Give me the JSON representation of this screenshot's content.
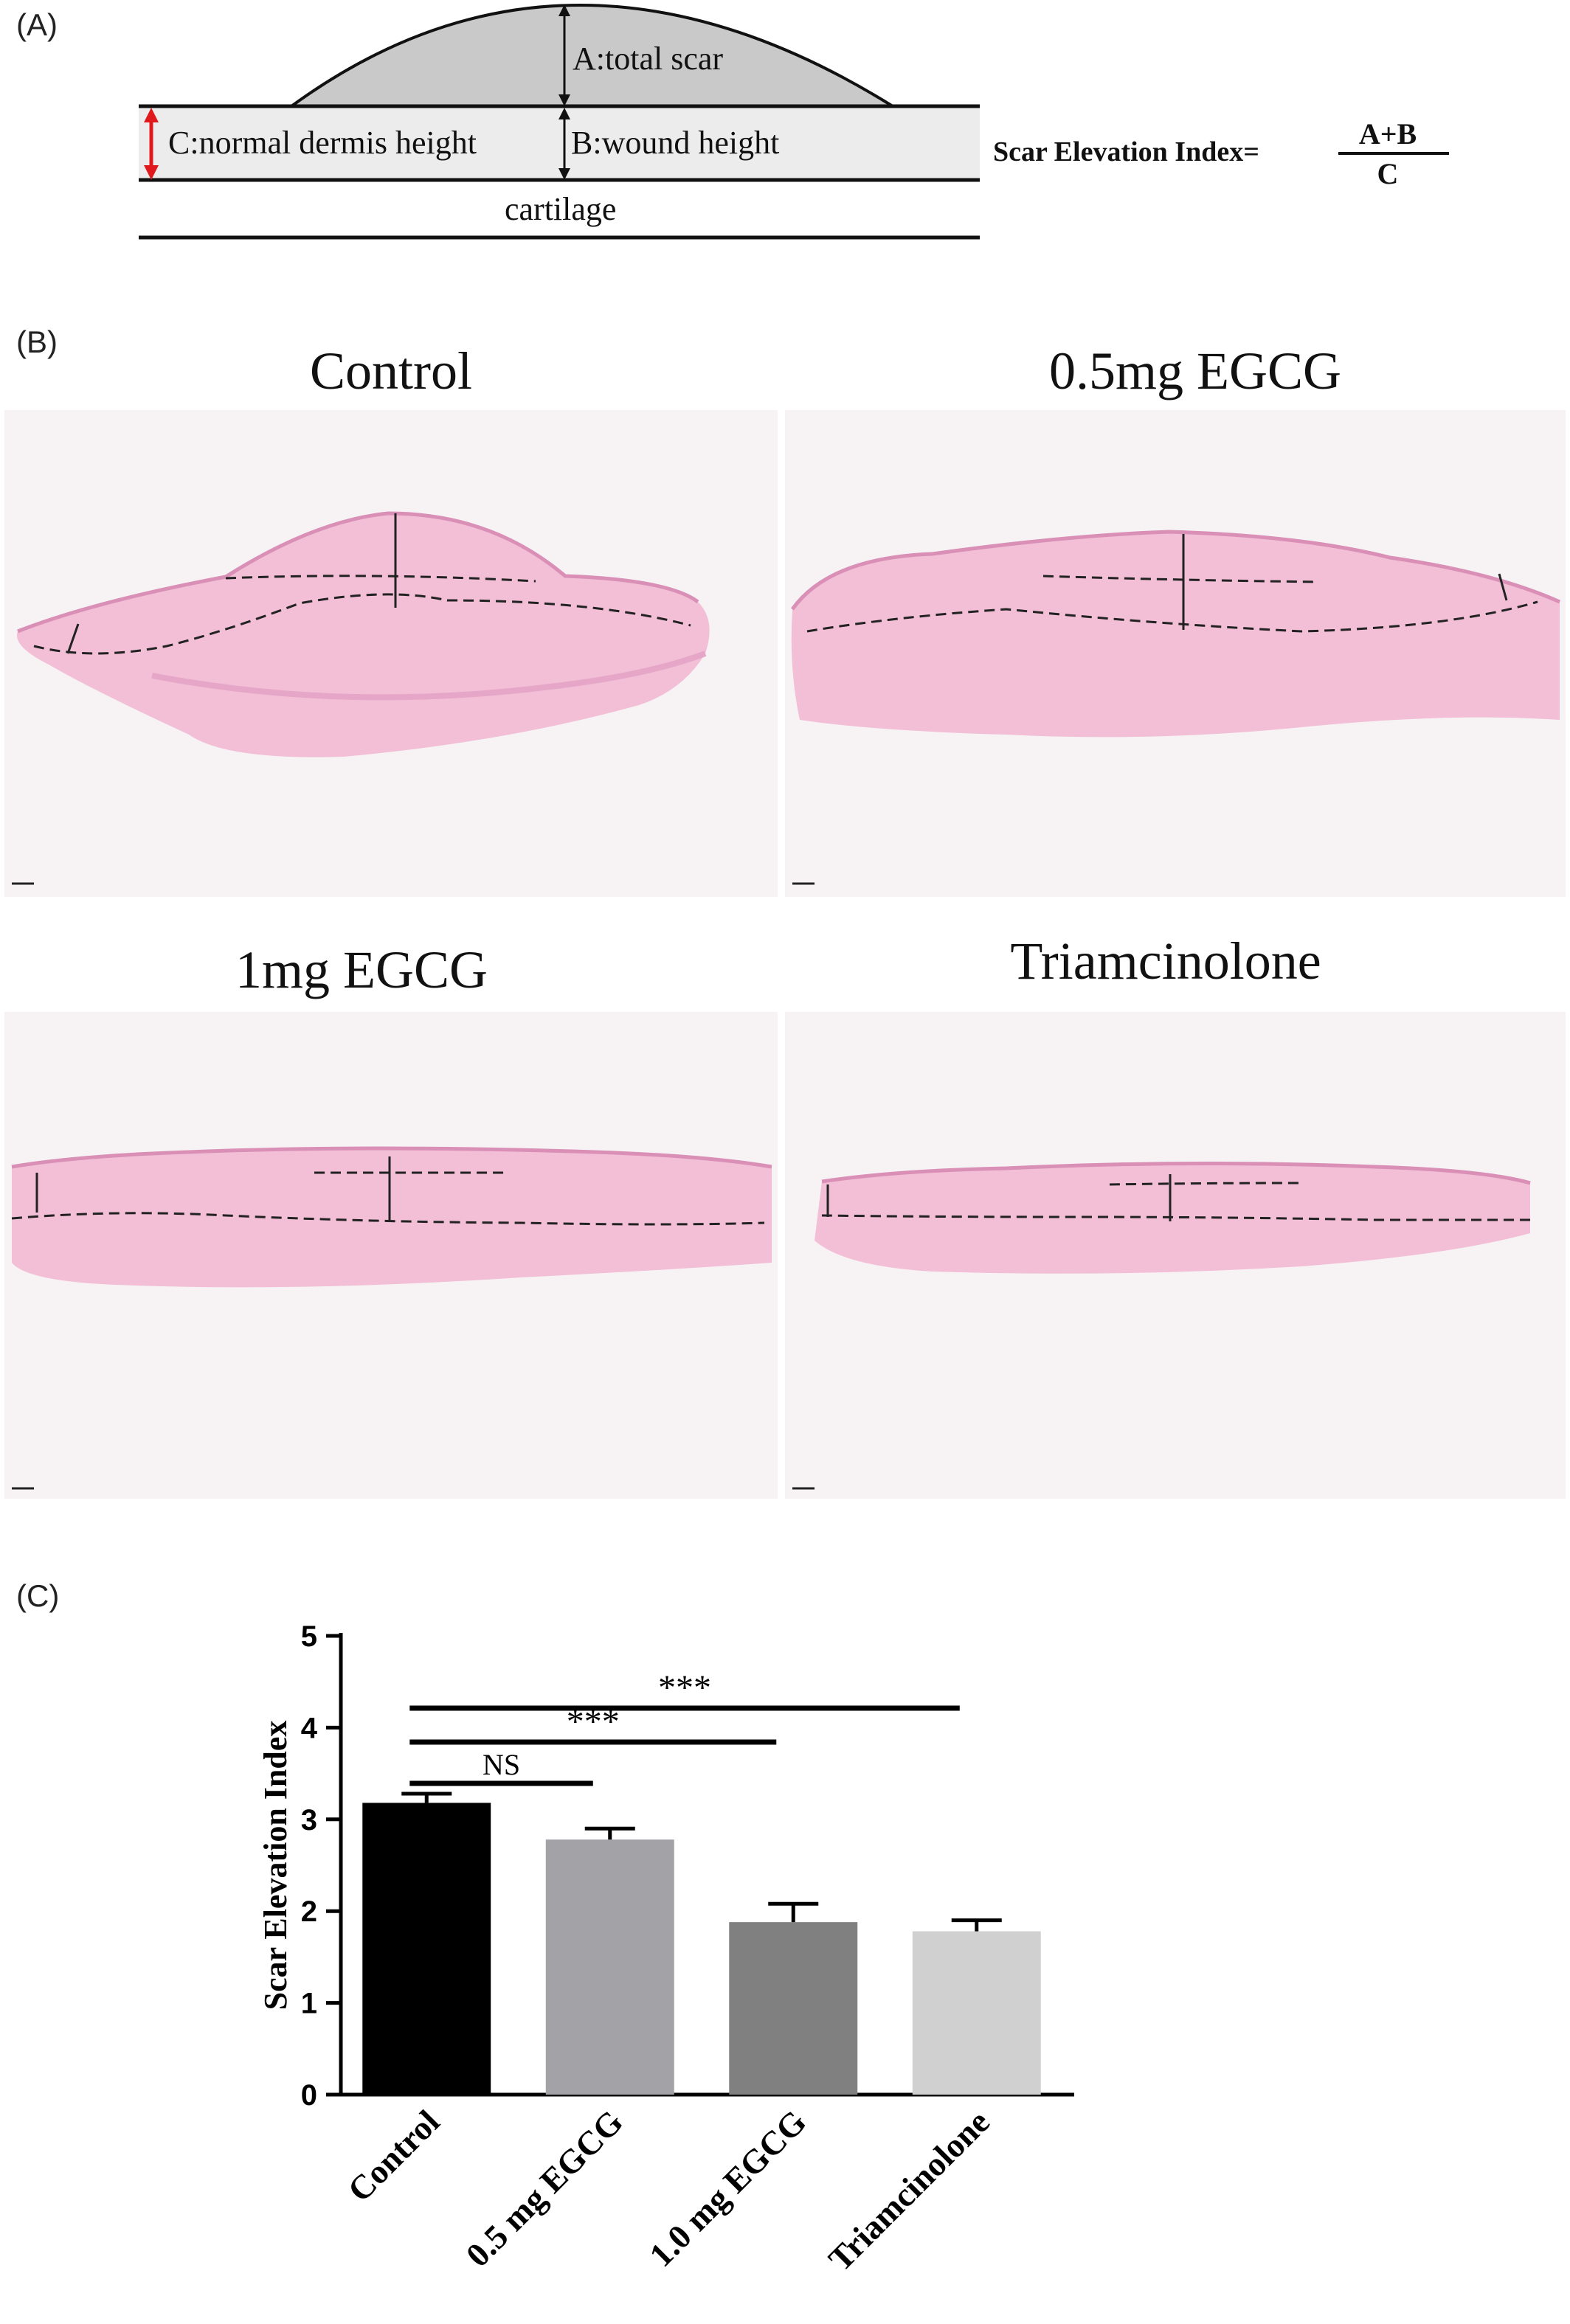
{
  "panels": {
    "a_label": "(A)",
    "b_label": "(B)",
    "c_label": "(C)"
  },
  "schematic": {
    "label_a": "A:total scar",
    "label_c": "C:normal dermis height",
    "label_b": "B:wound height",
    "label_cartilage": "cartilage",
    "formula_prefix": "Scar Elevation Index=",
    "formula_numerator": "A+B",
    "formula_denominator": "C",
    "colors": {
      "scar_fill": "#c9c9c9",
      "dermis_fill": "#ececec",
      "red_arrow": "#e0191c"
    }
  },
  "histology": {
    "titles": [
      "Control",
      "0.5mg EGCG",
      "1mg EGCG",
      "Triamcinolone"
    ],
    "colors": {
      "tissue": "#f2bfd6",
      "tissue_dark": "#e9a6c6",
      "background": "#f7f3f4"
    }
  },
  "chart_data": {
    "type": "bar",
    "categories": [
      "Control",
      "0.5 mg EGCG",
      "1.0 mg EGCG",
      "Triamcinolone"
    ],
    "values": [
      3.18,
      2.78,
      1.88,
      1.78
    ],
    "errors": [
      0.1,
      0.12,
      0.2,
      0.12
    ],
    "bar_colors": [
      "#000000",
      "#a3a3a7",
      "#808080",
      "#d0d0d0"
    ],
    "ylabel": "Scar Elevation Index",
    "xlabel": "",
    "ylim": [
      0,
      5
    ],
    "yticks": [
      0,
      1,
      2,
      3,
      4,
      5
    ],
    "significance": [
      {
        "label": "NS",
        "from": 0,
        "to": 1
      },
      {
        "label": "***",
        "from": 0,
        "to": 2
      },
      {
        "label": "***",
        "from": 0,
        "to": 3
      }
    ],
    "grid": false
  }
}
